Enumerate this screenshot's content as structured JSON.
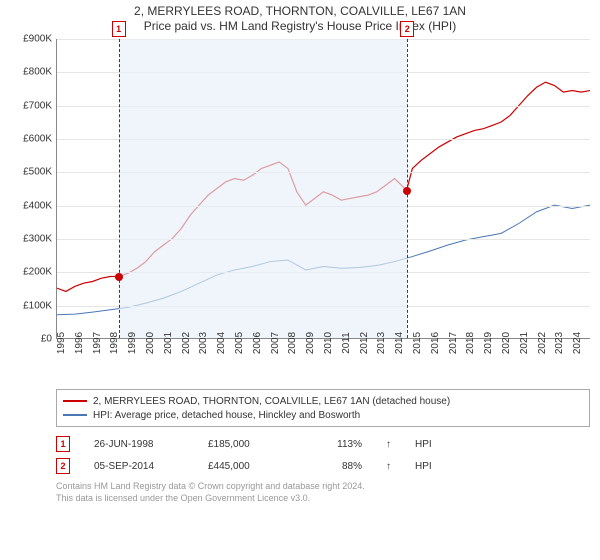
{
  "title": "2, MERRYLEES ROAD, THORNTON, COALVILLE, LE67 1AN",
  "subtitle": "Price paid vs. HM Land Registry's House Price Index (HPI)",
  "chart": {
    "type": "line",
    "ylim": [
      0,
      900000
    ],
    "ytick_step": 100000,
    "ylabels": [
      "£0",
      "£100K",
      "£200K",
      "£300K",
      "£400K",
      "£500K",
      "£600K",
      "£700K",
      "£800K",
      "£900K"
    ],
    "xlim": [
      1995,
      2025
    ],
    "xlabels": [
      "1995",
      "1996",
      "1997",
      "1998",
      "1999",
      "2000",
      "2001",
      "2002",
      "2003",
      "2004",
      "2005",
      "2006",
      "2007",
      "2008",
      "2009",
      "2010",
      "2011",
      "2012",
      "2013",
      "2014",
      "2015",
      "2016",
      "2017",
      "2018",
      "2019",
      "2020",
      "2021",
      "2022",
      "2023",
      "2024"
    ],
    "series": [
      {
        "name": "2, MERRYLEES ROAD, THORNTON, COALVILLE, LE67 1AN (detached house)",
        "color": "#cc0000",
        "width": 1.2,
        "points": [
          [
            1995,
            150000
          ],
          [
            1995.5,
            140000
          ],
          [
            1996,
            155000
          ],
          [
            1996.5,
            165000
          ],
          [
            1997,
            170000
          ],
          [
            1997.5,
            180000
          ],
          [
            1998,
            185000
          ],
          [
            1998.46,
            185000
          ],
          [
            1999,
            195000
          ],
          [
            1999.5,
            210000
          ],
          [
            2000,
            230000
          ],
          [
            2000.5,
            260000
          ],
          [
            2001,
            280000
          ],
          [
            2001.5,
            300000
          ],
          [
            2002,
            330000
          ],
          [
            2002.5,
            370000
          ],
          [
            2003,
            400000
          ],
          [
            2003.5,
            430000
          ],
          [
            2004,
            450000
          ],
          [
            2004.5,
            470000
          ],
          [
            2005,
            480000
          ],
          [
            2005.5,
            475000
          ],
          [
            2006,
            490000
          ],
          [
            2006.5,
            510000
          ],
          [
            2007,
            520000
          ],
          [
            2007.5,
            530000
          ],
          [
            2008,
            510000
          ],
          [
            2008.5,
            440000
          ],
          [
            2009,
            400000
          ],
          [
            2009.5,
            420000
          ],
          [
            2010,
            440000
          ],
          [
            2010.5,
            430000
          ],
          [
            2011,
            415000
          ],
          [
            2011.5,
            420000
          ],
          [
            2012,
            425000
          ],
          [
            2012.5,
            430000
          ],
          [
            2013,
            440000
          ],
          [
            2013.5,
            460000
          ],
          [
            2014,
            480000
          ],
          [
            2014.68,
            445000
          ],
          [
            2015,
            510000
          ],
          [
            2015.5,
            535000
          ],
          [
            2016,
            555000
          ],
          [
            2016.5,
            575000
          ],
          [
            2017,
            590000
          ],
          [
            2017.5,
            605000
          ],
          [
            2018,
            615000
          ],
          [
            2018.5,
            625000
          ],
          [
            2019,
            630000
          ],
          [
            2019.5,
            640000
          ],
          [
            2020,
            650000
          ],
          [
            2020.5,
            670000
          ],
          [
            2021,
            700000
          ],
          [
            2021.5,
            730000
          ],
          [
            2022,
            755000
          ],
          [
            2022.5,
            770000
          ],
          [
            2023,
            760000
          ],
          [
            2023.5,
            740000
          ],
          [
            2024,
            745000
          ],
          [
            2024.5,
            740000
          ],
          [
            2025,
            745000
          ]
        ]
      },
      {
        "name": "HPI: Average price, detached house, Hinckley and Bosworth",
        "color": "#4a78b5",
        "width": 1.0,
        "points": [
          [
            1995,
            70000
          ],
          [
            1996,
            72000
          ],
          [
            1997,
            78000
          ],
          [
            1998,
            85000
          ],
          [
            1999,
            92000
          ],
          [
            2000,
            105000
          ],
          [
            2001,
            120000
          ],
          [
            2002,
            140000
          ],
          [
            2003,
            165000
          ],
          [
            2004,
            190000
          ],
          [
            2005,
            205000
          ],
          [
            2006,
            215000
          ],
          [
            2007,
            230000
          ],
          [
            2008,
            235000
          ],
          [
            2009,
            205000
          ],
          [
            2010,
            215000
          ],
          [
            2011,
            210000
          ],
          [
            2012,
            212000
          ],
          [
            2013,
            218000
          ],
          [
            2014,
            230000
          ],
          [
            2015,
            245000
          ],
          [
            2016,
            262000
          ],
          [
            2017,
            280000
          ],
          [
            2018,
            295000
          ],
          [
            2019,
            305000
          ],
          [
            2020,
            315000
          ],
          [
            2021,
            345000
          ],
          [
            2022,
            380000
          ],
          [
            2023,
            400000
          ],
          [
            2024,
            390000
          ],
          [
            2025,
            400000
          ]
        ]
      }
    ],
    "shade_band": {
      "start": 1998.46,
      "end": 2014.68,
      "color": "#e6f0f7"
    },
    "markers": [
      {
        "label": "1",
        "x": 1998.46,
        "y": 185000
      },
      {
        "label": "2",
        "x": 2014.68,
        "y": 445000
      }
    ],
    "background_color": "#ffffff",
    "grid_color": "#e5e5e5"
  },
  "legend": {
    "items": [
      {
        "color": "#cc0000",
        "label": "2, MERRYLEES ROAD, THORNTON, COALVILLE, LE67 1AN (detached house)"
      },
      {
        "color": "#4a78b5",
        "label": "HPI: Average price, detached house, Hinckley and Bosworth"
      }
    ]
  },
  "transactions": [
    {
      "marker": "1",
      "date": "26-JUN-1998",
      "price": "£185,000",
      "pct": "113%",
      "arrow": "↑",
      "suffix": "HPI"
    },
    {
      "marker": "2",
      "date": "05-SEP-2014",
      "price": "£445,000",
      "pct": "88%",
      "arrow": "↑",
      "suffix": "HPI"
    }
  ],
  "footer": {
    "line1": "Contains HM Land Registry data © Crown copyright and database right 2024.",
    "line2": "This data is licensed under the Open Government Licence v3.0."
  }
}
